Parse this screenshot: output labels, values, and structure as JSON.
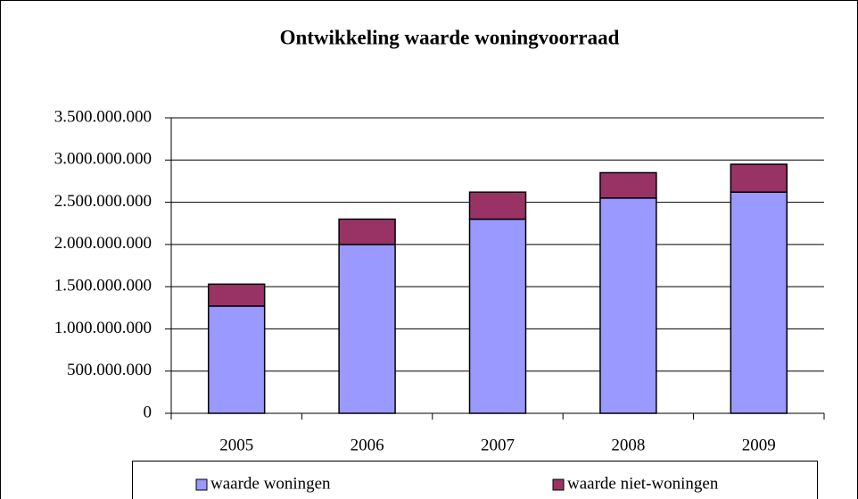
{
  "chart_data": {
    "type": "bar",
    "stacked": true,
    "title": "Ontwikkeling waarde woningvoorraad",
    "categories": [
      "2005",
      "2006",
      "2007",
      "2008",
      "2009"
    ],
    "series": [
      {
        "name": "waarde woningen",
        "color": "#9999ff",
        "values": [
          1270000000,
          2000000000,
          2300000000,
          2550000000,
          2620000000
        ]
      },
      {
        "name": "waarde niet-woningen",
        "color": "#993366",
        "values": [
          260000000,
          300000000,
          320000000,
          300000000,
          330000000
        ]
      }
    ],
    "ylim": [
      0,
      3500000000
    ],
    "yticks": [
      0,
      {
        "value": 500000000,
        "label": "500.000.000"
      },
      {
        "value": 1000000000,
        "label": "1.000.000.000"
      },
      {
        "value": 1500000000,
        "label": "1.500.000.000"
      },
      {
        "value": 2000000000,
        "label": "2.000.000.000"
      },
      {
        "value": 2500000000,
        "label": "2.500.000.000"
      },
      {
        "value": 3000000000,
        "label": "3.000.000.000"
      },
      {
        "value": 3500000000,
        "label": "3.500.000.000"
      }
    ],
    "grid": true,
    "legend": "bottom"
  }
}
